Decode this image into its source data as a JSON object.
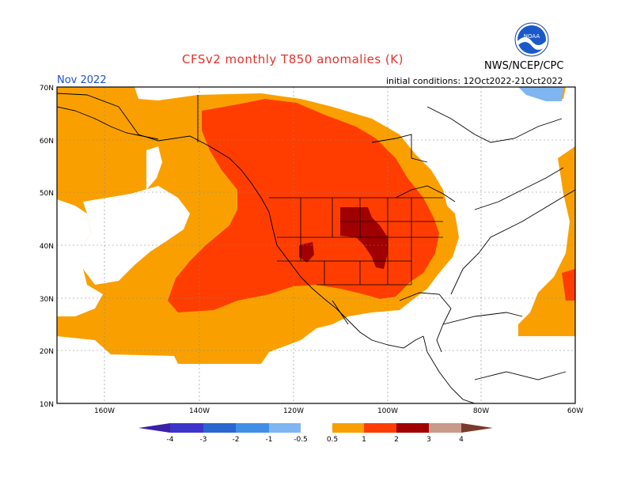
{
  "header": {
    "title": "CFSv2 monthly T850 anomalies (K)",
    "month": "Nov 2022",
    "agency": "NWS/NCEP/CPC",
    "initial_conditions": "initial conditions: 12Oct2022-21Oct2022",
    "logo_text": "NOAA"
  },
  "map": {
    "lat_labels": [
      "70N",
      "60N",
      "50N",
      "40N",
      "30N",
      "20N",
      "10N"
    ],
    "lon_labels": [
      "160W",
      "140W",
      "120W",
      "100W",
      "80W",
      "60W"
    ]
  },
  "legend": {
    "labels": [
      "-4",
      "-3",
      "-2",
      "-1",
      "-0.5",
      "0.5",
      "1",
      "2",
      "3",
      "4"
    ],
    "colors": {
      "lt_m4": "#3b1fa8",
      "m4_m3": "#3d35c9",
      "m3_m2": "#2a66cf",
      "m2_m1": "#3f8fe6",
      "m1_m05": "#7fb6f2",
      "neutral": "#ffffff",
      "p05_p1": "#f9a000",
      "p1_p2": "#ff3d00",
      "p2_p3": "#a10000",
      "p3_p4": "#c99a8a",
      "gt_p4": "#7a3a2a"
    }
  }
}
